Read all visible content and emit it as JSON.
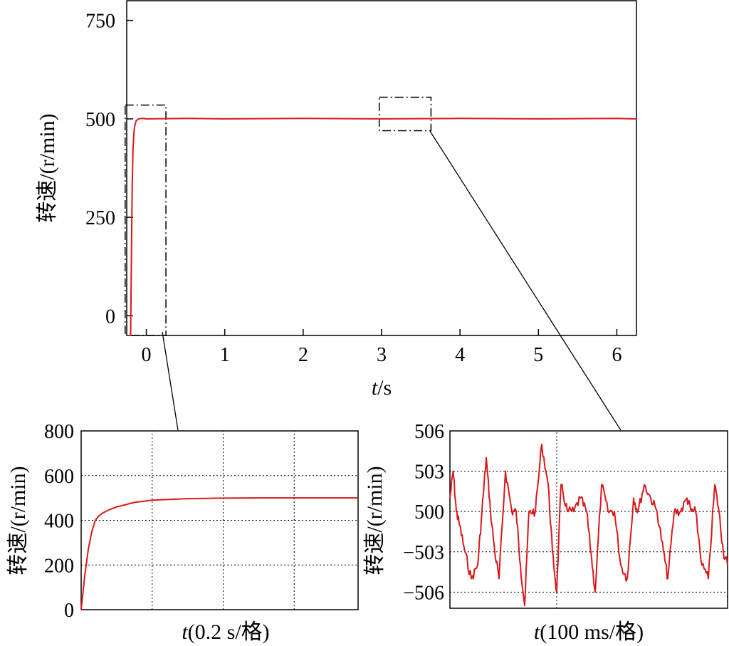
{
  "colors": {
    "series": "#d7191c",
    "axis": "#000000"
  },
  "chart_data": [
    {
      "id": "main",
      "type": "line",
      "xlabel": {
        "italic": "t",
        "rest": "/s"
      },
      "ylabel": "转速/(r/min)",
      "xlim": [
        -0.25,
        6.25
      ],
      "ylim": [
        -50,
        800
      ],
      "xticks": [
        0,
        1,
        2,
        3,
        4,
        5,
        6
      ],
      "xtick_labels": [
        "0",
        "1",
        "2",
        "3",
        "4",
        "5",
        "6"
      ],
      "yticks": [
        0,
        250,
        500,
        750
      ],
      "ytick_labels": [
        "0",
        "250",
        "500",
        "750"
      ],
      "grid": false,
      "series": [
        {
          "color": "#d7191c",
          "x": [
            -0.25,
            -0.2,
            -0.19,
            -0.18,
            -0.17,
            -0.16,
            -0.15,
            -0.13,
            -0.1,
            -0.05,
            0,
            0.5,
            1,
            2,
            3,
            4,
            5,
            6,
            6.25
          ],
          "y": [
            -50,
            -50,
            150,
            330,
            420,
            460,
            480,
            495,
            500,
            501,
            500,
            501,
            500,
            501,
            500,
            501,
            500,
            501,
            500
          ]
        }
      ],
      "zoom_boxes": [
        {
          "x": [
            -0.27,
            0.25
          ],
          "y": [
            -50,
            535
          ]
        },
        {
          "x": [
            2.97,
            3.63
          ],
          "y": [
            470,
            555
          ]
        }
      ]
    },
    {
      "id": "inset-left",
      "type": "line",
      "xlabel": {
        "italic": "t",
        "rest": "(0.2 s/格)"
      },
      "ylabel": "转速/(r/min)",
      "xlim": [
        0,
        0.78
      ],
      "ylim": [
        0,
        800
      ],
      "yticks": [
        0,
        200,
        400,
        600,
        800
      ],
      "ytick_labels": [
        "0",
        "200",
        "400",
        "600",
        "800"
      ],
      "grid_x": [
        0.2,
        0.4,
        0.6
      ],
      "grid": true,
      "series": [
        {
          "color": "#d7191c",
          "x": [
            0,
            0.01,
            0.02,
            0.03,
            0.04,
            0.05,
            0.06,
            0.08,
            0.1,
            0.15,
            0.2,
            0.3,
            0.4,
            0.5,
            0.6,
            0.7,
            0.78
          ],
          "y": [
            0,
            150,
            270,
            350,
            400,
            420,
            432,
            448,
            460,
            480,
            490,
            497,
            499,
            500,
            500,
            500,
            500
          ]
        }
      ]
    },
    {
      "id": "inset-right",
      "type": "line",
      "xlabel": {
        "italic": "t",
        "rest": "(100 ms/格)"
      },
      "ylabel": "转速/(r/min)",
      "xlim": [
        0,
        260
      ],
      "ylim": [
        -507.5,
        506
      ],
      "yticks": [
        506,
        503,
        500,
        -503,
        -506
      ],
      "ytick_labels": [
        "506",
        "503",
        "500",
        "−503",
        "−506"
      ],
      "grid_x": [
        100
      ],
      "grid": true,
      "series": [
        {
          "color": "#d7191c",
          "x": [
            0,
            3,
            6,
            9,
            14,
            20,
            26,
            30,
            34,
            38,
            42,
            46,
            52,
            58,
            62,
            66,
            70,
            74,
            80,
            86,
            92,
            96,
            100,
            104,
            110,
            116,
            122,
            128,
            132,
            136,
            142,
            148,
            154,
            160,
            166,
            172,
            176,
            182,
            188,
            194,
            200,
            204,
            210,
            216,
            222,
            226,
            230,
            236,
            242,
            248,
            252,
            256,
            260
          ],
          "y": [
            501,
            503,
            500,
            499,
            -503,
            -505,
            -504,
            500,
            504,
            500,
            -503,
            -505,
            503,
            500,
            500,
            -504,
            -507,
            500,
            500,
            505,
            502,
            -503,
            -506,
            502,
            500,
            500,
            501,
            500,
            -503,
            -506,
            502,
            500,
            500,
            -504,
            -505,
            501,
            500,
            502,
            501,
            500,
            -503,
            -505,
            500,
            500,
            501,
            500,
            500,
            -504,
            -505,
            502,
            500,
            -503,
            -504
          ]
        }
      ]
    }
  ]
}
